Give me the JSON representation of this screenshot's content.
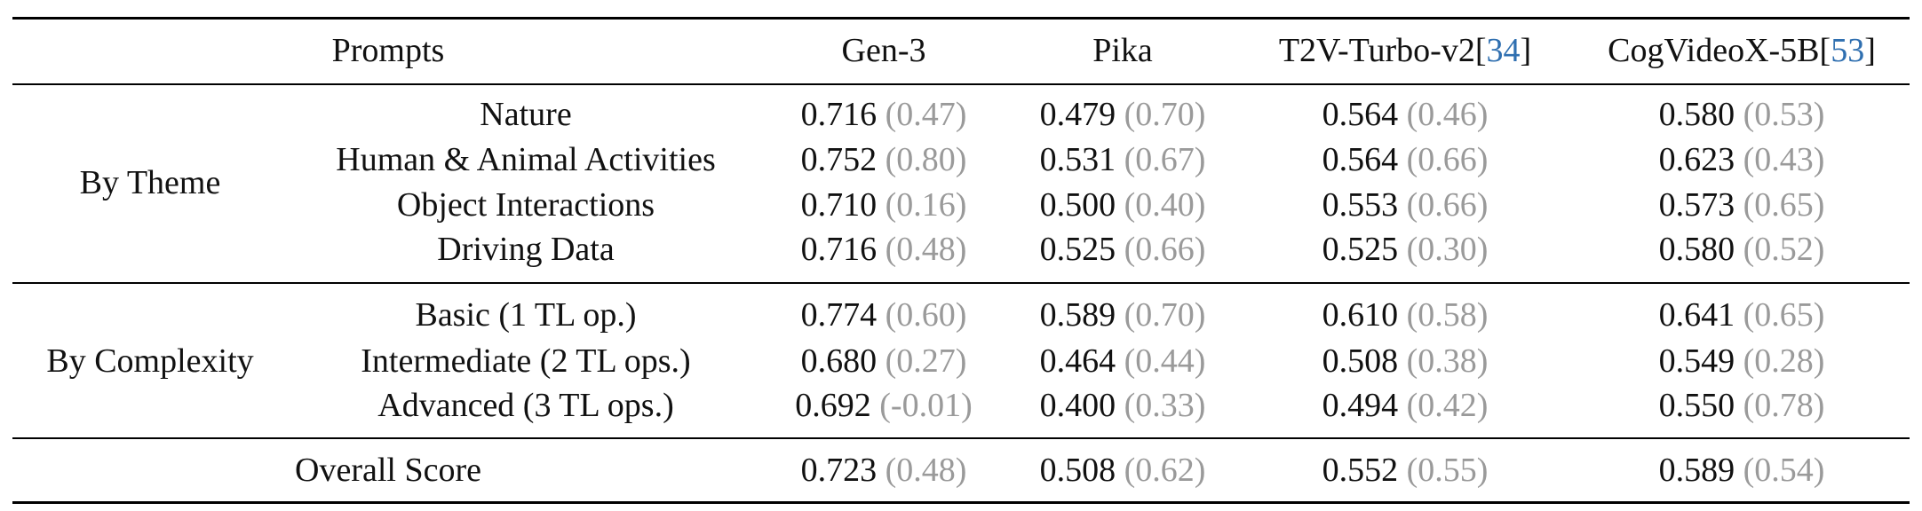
{
  "header": {
    "prompts": "Prompts",
    "columns": [
      {
        "name": "Gen-3",
        "ref": ""
      },
      {
        "name": "Pika",
        "ref": ""
      },
      {
        "name": "T2V-Turbo-v2[",
        "ref": "34",
        "close": "]"
      },
      {
        "name": "CogVideoX-5B[",
        "ref": "53",
        "close": "]"
      }
    ]
  },
  "groups": [
    {
      "label": "By Theme",
      "rows": [
        {
          "prompt": "Nature",
          "cells": [
            {
              "score": "0.716",
              "sd": "(0.47)"
            },
            {
              "score": "0.479",
              "sd": "(0.70)"
            },
            {
              "score": "0.564",
              "sd": "(0.46)"
            },
            {
              "score": "0.580",
              "sd": "(0.53)"
            }
          ]
        },
        {
          "prompt": "Human & Animal Activities",
          "cells": [
            {
              "score": "0.752",
              "sd": "(0.80)"
            },
            {
              "score": "0.531",
              "sd": "(0.67)"
            },
            {
              "score": "0.564",
              "sd": "(0.66)"
            },
            {
              "score": "0.623",
              "sd": "(0.43)"
            }
          ]
        },
        {
          "prompt": "Object Interactions",
          "cells": [
            {
              "score": "0.710",
              "sd": "(0.16)"
            },
            {
              "score": "0.500",
              "sd": "(0.40)"
            },
            {
              "score": "0.553",
              "sd": "(0.66)"
            },
            {
              "score": "0.573",
              "sd": "(0.65)"
            }
          ]
        },
        {
          "prompt": "Driving Data",
          "cells": [
            {
              "score": "0.716",
              "sd": "(0.48)"
            },
            {
              "score": "0.525",
              "sd": "(0.66)"
            },
            {
              "score": "0.525",
              "sd": "(0.30)"
            },
            {
              "score": "0.580",
              "sd": "(0.52)"
            }
          ]
        }
      ]
    },
    {
      "label": "By Complexity",
      "rows": [
        {
          "prompt": "Basic (1 TL op.)",
          "cells": [
            {
              "score": "0.774",
              "sd": "(0.60)"
            },
            {
              "score": "0.589",
              "sd": "(0.70)"
            },
            {
              "score": "0.610",
              "sd": "(0.58)"
            },
            {
              "score": "0.641",
              "sd": "(0.65)"
            }
          ]
        },
        {
          "prompt": "Intermediate (2 TL ops.)",
          "cells": [
            {
              "score": "0.680",
              "sd": "(0.27)"
            },
            {
              "score": "0.464",
              "sd": "(0.44)"
            },
            {
              "score": "0.508",
              "sd": "(0.38)"
            },
            {
              "score": "0.549",
              "sd": "(0.28)"
            }
          ]
        },
        {
          "prompt": "Advanced (3 TL ops.)",
          "cells": [
            {
              "score": "0.692",
              "sd": "(-0.01)"
            },
            {
              "score": "0.400",
              "sd": "(0.33)"
            },
            {
              "score": "0.494",
              "sd": "(0.42)"
            },
            {
              "score": "0.550",
              "sd": "(0.78)"
            }
          ]
        }
      ]
    }
  ],
  "overall": {
    "label": "Overall Score",
    "cells": [
      {
        "score": "0.723",
        "sd": "(0.48)"
      },
      {
        "score": "0.508",
        "sd": "(0.62)"
      },
      {
        "score": "0.552",
        "sd": "(0.55)"
      },
      {
        "score": "0.589",
        "sd": "(0.54)"
      }
    ]
  }
}
